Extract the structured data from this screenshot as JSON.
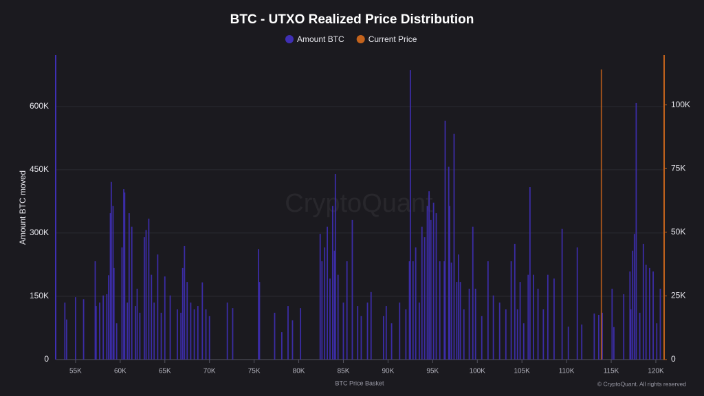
{
  "chart_data": {
    "type": "bar",
    "title": "BTC - UTXO Realized Price Distribution",
    "x_label": "BTC Price Basket",
    "y_label": "Amount BTC moved",
    "watermark": "CryptoQuant",
    "copyright": "© CryptoQuant. All rights reserved",
    "grid": true,
    "legend": "top",
    "xlim": [
      52850,
      120850
    ],
    "ylim": [
      0,
      722000
    ],
    "y2lim": [
      0,
      119600
    ],
    "xticks": [
      {
        "value": 55000,
        "label": "55K"
      },
      {
        "value": 60000,
        "label": "60K"
      },
      {
        "value": 65000,
        "label": "65K"
      },
      {
        "value": 70000,
        "label": "70K"
      },
      {
        "value": 75000,
        "label": "75K"
      },
      {
        "value": 80000,
        "label": "80K"
      },
      {
        "value": 85000,
        "label": "85K"
      },
      {
        "value": 90000,
        "label": "90K"
      },
      {
        "value": 95000,
        "label": "95K"
      },
      {
        "value": 100000,
        "label": "100K"
      },
      {
        "value": 105000,
        "label": "105K"
      },
      {
        "value": 110000,
        "label": "110K"
      },
      {
        "value": 115000,
        "label": "115K"
      },
      {
        "value": 120000,
        "label": "120K"
      }
    ],
    "yticks": [
      0,
      {
        "value": 150000,
        "label": "150K"
      },
      {
        "value": 300000,
        "label": "300K"
      },
      {
        "value": 450000,
        "label": "450K"
      },
      {
        "value": 600000,
        "label": "600K"
      }
    ],
    "y2ticks": [
      0,
      {
        "value": 25000,
        "label": "25K"
      },
      {
        "value": 50000,
        "label": "50K"
      },
      {
        "value": 75000,
        "label": "75K"
      },
      {
        "value": 100000,
        "label": "100K"
      }
    ],
    "series": [
      {
        "name": "Amount BTC",
        "color": "#3f2fb4",
        "x": [
          53800,
          54000,
          55000,
          55900,
          57200,
          57300,
          57700,
          58100,
          58500,
          58700,
          58900,
          59000,
          59200,
          59300,
          59600,
          60200,
          60400,
          60500,
          60800,
          61000,
          61300,
          61700,
          61900,
          62200,
          62700,
          62900,
          63200,
          63500,
          63800,
          64200,
          64600,
          65000,
          65600,
          66400,
          66800,
          67000,
          67200,
          67500,
          67900,
          68300,
          68700,
          69200,
          69600,
          70000,
          72000,
          72600,
          75500,
          75600,
          77300,
          78100,
          78800,
          79300,
          80200,
          82400,
          82600,
          82900,
          83200,
          83500,
          83800,
          84000,
          84100,
          84400,
          85000,
          85400,
          86000,
          86600,
          87000,
          87700,
          88100,
          89500,
          89800,
          90400,
          91300,
          92000,
          92400,
          92500,
          92800,
          93100,
          93500,
          93800,
          94100,
          94400,
          94600,
          94800,
          95100,
          95400,
          95800,
          96300,
          96400,
          96800,
          96900,
          97100,
          97400,
          97700,
          97900,
          98100,
          98500,
          99100,
          99500,
          99800,
          100500,
          101200,
          101800,
          102500,
          103200,
          103800,
          104200,
          104500,
          104800,
          105200,
          105700,
          105900,
          106300,
          106800,
          107400,
          107900,
          108600,
          109500,
          110200,
          111200,
          111700,
          113100,
          113600,
          114000,
          115100,
          115300,
          116400,
          117100,
          117200,
          117400,
          117600,
          117800,
          118200,
          118600,
          118900,
          119300,
          119700,
          120100,
          120500
        ],
        "values": [
          135000,
          95000,
          148000,
          143000,
          233000,
          127000,
          135000,
          152000,
          155000,
          200000,
          347000,
          421000,
          364000,
          217000,
          86000,
          266000,
          404000,
          396000,
          135000,
          347000,
          315000,
          127000,
          168000,
          111000,
          290000,
          307000,
          334000,
          201000,
          135000,
          249000,
          111000,
          197000,
          152000,
          119000,
          111000,
          217000,
          269000,
          184000,
          135000,
          119000,
          127000,
          183000,
          119000,
          103000,
          135000,
          122000,
          262000,
          184000,
          111000,
          65000,
          127000,
          93000,
          122000,
          298000,
          233000,
          266000,
          315000,
          192000,
          364000,
          258000,
          440000,
          201000,
          135000,
          233000,
          331000,
          127000,
          103000,
          135000,
          160000,
          103000,
          127000,
          86000,
          135000,
          119000,
          233000,
          686000,
          233000,
          266000,
          135000,
          315000,
          290000,
          364000,
          399000,
          331000,
          372000,
          347000,
          233000,
          233000,
          566000,
          457000,
          364000,
          230000,
          535000,
          184000,
          249000,
          184000,
          119000,
          168000,
          315000,
          168000,
          103000,
          233000,
          152000,
          135000,
          119000,
          233000,
          274000,
          119000,
          184000,
          86000,
          201000,
          409000,
          201000,
          168000,
          119000,
          201000,
          192000,
          310000,
          78000,
          266000,
          83000,
          109000,
          106000,
          111000,
          168000,
          77000,
          155000,
          209000,
          119000,
          258000,
          298000,
          608000,
          111000,
          274000,
          225000,
          217000,
          209000,
          86000,
          168000
        ]
      },
      {
        "name": "Current Price",
        "color": "#c4631c",
        "axis": "y2",
        "x": [
          113900
        ],
        "values": [
          113900
        ]
      }
    ]
  }
}
